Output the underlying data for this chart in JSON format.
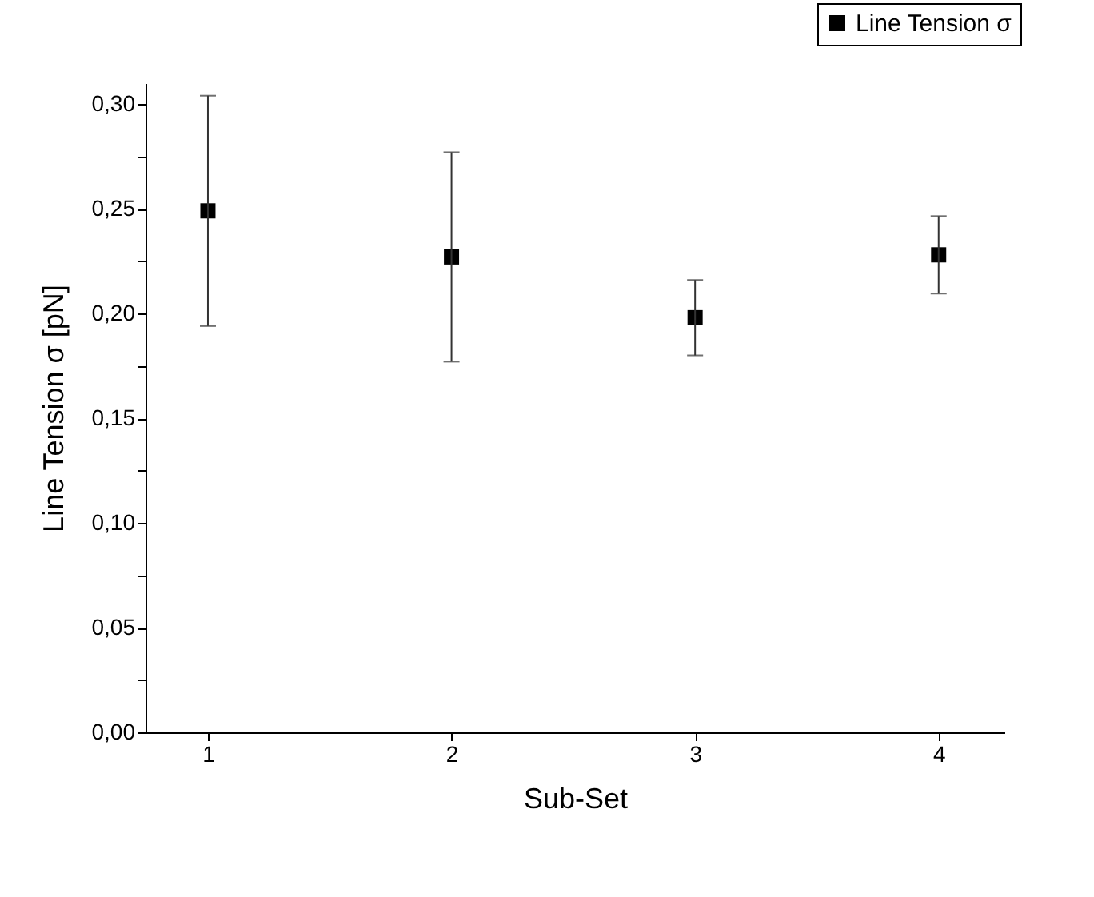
{
  "chart_data": {
    "type": "scatter",
    "xlabel": "Sub-Set",
    "ylabel": "Line Tension σ  [pN]",
    "x": [
      1,
      2,
      3,
      4
    ],
    "xlim": [
      0.744,
      4.27
    ],
    "xticks": [
      1,
      2,
      3,
      4
    ],
    "ylim": [
      0,
      0.31
    ],
    "yticks": [
      {
        "value": 0,
        "label": "0,00"
      },
      {
        "value": 0.025,
        "label": null
      },
      {
        "value": 0.05,
        "label": "0,05"
      },
      {
        "value": 0.075,
        "label": null
      },
      {
        "value": 0.1,
        "label": "0,10"
      },
      {
        "value": 0.125,
        "label": null
      },
      {
        "value": 0.15,
        "label": "0,15"
      },
      {
        "value": 0.175,
        "label": null
      },
      {
        "value": 0.2,
        "label": "0,20"
      },
      {
        "value": 0.225,
        "label": null
      },
      {
        "value": 0.25,
        "label": "0,25"
      },
      {
        "value": 0.275,
        "label": null
      },
      {
        "value": 0.3,
        "label": "0,30"
      }
    ],
    "series": [
      {
        "name": "Line Tension σ",
        "color": "#000000",
        "values": [
          0.249,
          0.227,
          0.198,
          0.228
        ],
        "errors": [
          0.055,
          0.05,
          0.018,
          0.0185
        ]
      }
    ],
    "marker": "square",
    "grid": false,
    "legend": "top right"
  }
}
